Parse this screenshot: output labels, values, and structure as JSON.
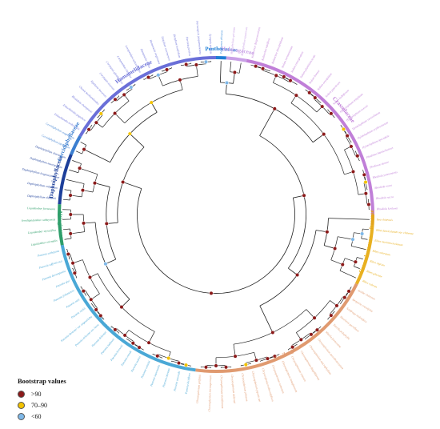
{
  "legend": {
    "title": "Bootstrap values",
    "items": [
      {
        "label": ">90",
        "color": "#8b1a1a"
      },
      {
        "label": "70–90",
        "color": "#f2c200"
      },
      {
        "label": "<60",
        "color": "#7fb8e8"
      }
    ]
  },
  "families": [
    {
      "name": "Penthoraceae",
      "color": "#1f7fd6",
      "tips": [
        "Penthorum chinense"
      ]
    },
    {
      "name": "Haloragaceae",
      "color": "#c9a0e6",
      "tips": [
        "Myriophyllum spicatum",
        "Myriophyllum aquaticum"
      ]
    },
    {
      "name": "Crassulaceae",
      "color": "#c07fd8",
      "tips": [
        "Kalanchoe daigremontiana",
        "Kalanchoe tubiflora",
        "Kalanchoe blossfeldiana",
        "Sedum sarmentosum",
        "Sedum emarginatum",
        "Sedum plumbizincicola",
        "Sedum lineare",
        "Sedum oryzifolium",
        "Sedum japonicum",
        "Sedum bulbiferum",
        "Hylotelephium telephium",
        "Hylotelephium ewersii",
        "Hylotelephium verticillatum",
        "Hylotelephium erythrostictum",
        "Hylotelephium spectabile",
        "Phedimus kamtschaticus",
        "Phedimus aizoon",
        "Rhodiola yunnanensis",
        "Rhodiola rosea",
        "Rhodiola sacra",
        "Rhodiola kirilowii"
      ]
    },
    {
      "name": "Iteaceae",
      "color": "#e3a51c",
      "tips": [
        "Itea chinensis"
      ]
    },
    {
      "name": "Grossulariaceae",
      "color": "#e8b020",
      "tips": [
        "Ribes fasciculatum var. chinense",
        "Ribes maximowiczianum",
        "Ribes odoratum",
        "Ribes nigrum",
        "Ribes glaciale",
        "Ribes rubrum"
      ]
    },
    {
      "name": "Saxifragaceae",
      "color": "#e09a70",
      "tips": [
        "Astilbe chinensis",
        "Bergenia crassifolia",
        "Saxifraga stolonifera",
        "Heuchera parviflora",
        "Tiarella polyphylla",
        "Mitella formosana",
        "Chrysosplenium aureobracteatum",
        "Chrysosplenium macrophyllum",
        "Chrysosplenium flagelliferum",
        "Chrysosplenium sinicum",
        "Chrysosplenium lanuginosum",
        "Chrysosplenium ramosum",
        "Chrysosplenium alternifolium",
        "Chrysosplenium japonicum",
        "Chrysosplenium pilosum",
        "Chrysosplenium delavayi",
        "Chrysosplenium biondianum",
        "Chrysosplenium microspermum",
        "Chrysosplenium griffithii"
      ]
    },
    {
      "name": "Paeoniaceae",
      "color": "#4aa8d6",
      "tips": [
        "Paeonia lactiflora",
        "Paeonia anomala",
        "Paeonia obovata",
        "Paeonia intermedia",
        "Paeonia veitchii",
        "Paeonia mairei",
        "Paeonia emodi",
        "Paeonia brownii",
        "Paeonia ludlowii",
        "Paeonia delavayi",
        "Paeonia delavayi var. lutea",
        "Paeonia delavayi var. angustiloba",
        "Paeonia rockii",
        "Paeonia ostii",
        "Paeonia jishanensis",
        "Paeonia qiui",
        "Paeonia decomposita",
        "Paeonia suffruticosa",
        "Paeonia cathayana"
      ]
    },
    {
      "name": "Altingiaceae",
      "color": "#2e9e6a",
      "tips": [
        "Liquidambar orientalis",
        "Liquidambar styraciflua",
        "Semiliquidambar cathayensis",
        "Liquidambar formosana"
      ]
    },
    {
      "name": "Daphniphyllaceae",
      "color": "#1d3f9a",
      "tips": [
        "Daphniphyllum oldhamii",
        "Daphniphyllum calycinum",
        "Daphniphyllum longeracemosum",
        "Daphniphyllum macropodum",
        "Daphniphyllum chartaceum"
      ]
    },
    {
      "name": "Cercidiphyllaceae",
      "color": "#3c7fd0",
      "tips": [
        "Cercidiphyllum japonicum",
        "Cercidiphyllum magnificum"
      ]
    },
    {
      "name": "Hamamelidaceae",
      "color": "#6a6fd8",
      "tips": [
        "Exbucklandia tonkinensis",
        "Exbucklandia populnea",
        "Rhodoleia championii",
        "Chunia bucklandioides",
        "Mytilaria laosensis",
        "Corylopsis sinensis",
        "Corylopsis glandulifera",
        "Loropetalum chinense",
        "Loropetalum subcordatum",
        "Hamamelis mollis",
        "Hamamelis virginiana",
        "Distylium racemosum",
        "Distylium buxifolium",
        "Parrotia persica",
        "Parrotiopsis jacquemontiana",
        "Sycopsis sinensis"
      ]
    }
  ]
}
